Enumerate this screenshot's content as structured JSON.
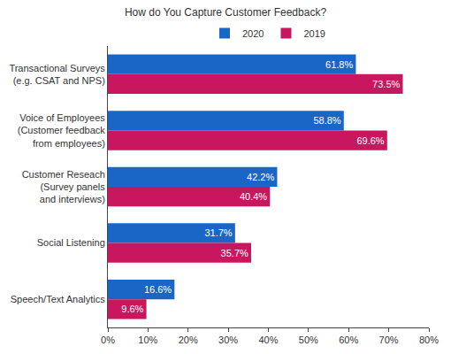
{
  "chart_data": {
    "type": "bar",
    "orientation": "horizontal",
    "title": "How do You Capture Customer Feedback?",
    "categories": [
      "Transactional Surveys\n(e.g. CSAT and NPS)",
      "Voice of Employees\n(Customer feedback\nfrom employees)",
      "Customer Reseach\n(Survey panels\nand interviews)",
      "Social Listening",
      "Speech/Text Analytics"
    ],
    "series": [
      {
        "name": "2020",
        "color": "#1a66c6",
        "values": [
          61.8,
          58.8,
          42.2,
          31.7,
          16.6
        ],
        "value_labels": [
          "61.8%",
          "58.8%",
          "42.2%",
          "31.7%",
          "16.6%"
        ]
      },
      {
        "name": "2019",
        "color": "#c8175e",
        "values": [
          73.5,
          69.6,
          40.4,
          35.7,
          9.6
        ],
        "value_labels": [
          "73.5%",
          "69.6%",
          "40.4%",
          "35.7%",
          "9.6%"
        ]
      }
    ],
    "xlim": [
      0,
      80
    ],
    "xticks": [
      {
        "value": 0,
        "label": "0%"
      },
      {
        "value": 10,
        "label": "10%"
      },
      {
        "value": 20,
        "label": "20%"
      },
      {
        "value": 30,
        "label": "30%"
      },
      {
        "value": 40,
        "label": "40%"
      },
      {
        "value": 50,
        "label": "50%"
      },
      {
        "value": 60,
        "label": "60%"
      },
      {
        "value": 70,
        "label": "70%"
      },
      {
        "value": 80,
        "label": "80%"
      }
    ],
    "grid": false,
    "legend": "top",
    "data_labels": true
  }
}
